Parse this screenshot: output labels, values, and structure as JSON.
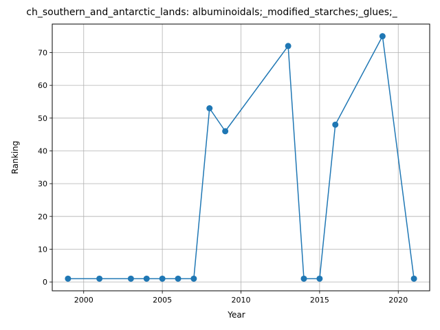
{
  "chart_data": {
    "type": "line",
    "title": "ch_southern_and_antarctic_lands: albuminoidals;_modified_starches;_glues;_",
    "xlabel": "Year",
    "ylabel": "Ranking",
    "xlim": [
      1998,
      2022
    ],
    "ylim": [
      -2.7,
      78.7
    ],
    "xticks": [
      2000,
      2005,
      2010,
      2015,
      2020
    ],
    "yticks": [
      0,
      10,
      20,
      30,
      40,
      50,
      60,
      70
    ],
    "grid": true,
    "color": "#1f77b4",
    "series": [
      {
        "x": [
          1999,
          2001,
          2003,
          2004,
          2005,
          2006,
          2007,
          2008,
          2009,
          2013,
          2014,
          2015,
          2016,
          2019,
          2021
        ],
        "values": [
          1,
          1,
          1,
          1,
          1,
          1,
          1,
          53,
          46,
          72,
          1,
          1,
          48,
          75,
          1
        ]
      }
    ]
  }
}
